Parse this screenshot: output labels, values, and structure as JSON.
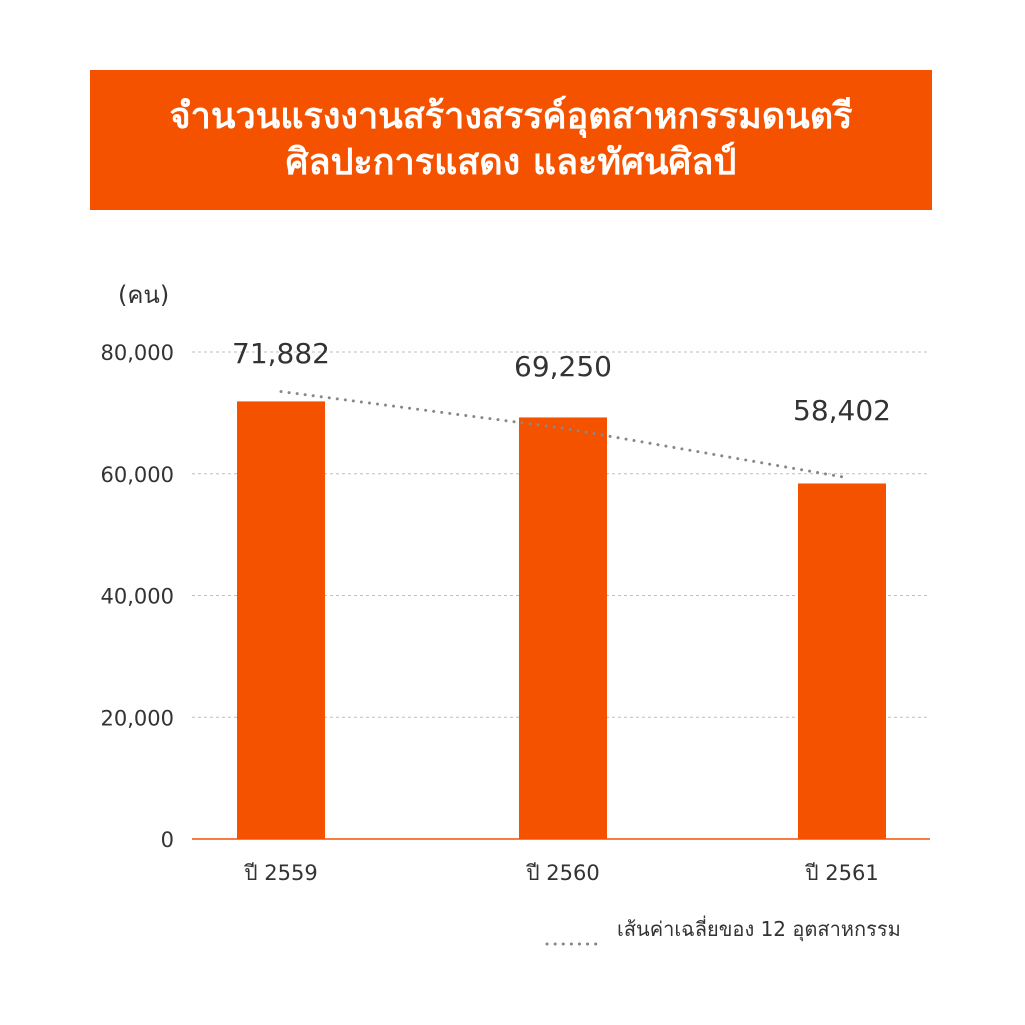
{
  "colors": {
    "banner": "#f55200",
    "bar": "#f55200",
    "axis_line": "#f55200",
    "gridline": "#bfbfbf",
    "trend_line": "#888888",
    "text": "#333333"
  },
  "title": {
    "line1": "จำนวนแรงงานสร้างสรรค์อุตสาหกรรมดนตรี",
    "line2": "ศิลปะการแสดง และทัศนศิลป์"
  },
  "chart_data": {
    "type": "bar",
    "unit_label": "(คน)",
    "categories": [
      "ปี 2559",
      "ปี 2560",
      "ปี 2561"
    ],
    "values": [
      71882,
      69250,
      58402
    ],
    "data_labels": [
      "71,882",
      "69,250",
      "58,402"
    ],
    "ylim": [
      0,
      80000
    ],
    "yticks": [
      0,
      20000,
      40000,
      60000,
      80000
    ],
    "ytick_labels": [
      "0",
      "20,000",
      "40,000",
      "60,000",
      "80,000"
    ],
    "grid": true,
    "trend_line": {
      "name": "เส้นค่าเฉลี่ยของ 12 อุตสาหกรรม",
      "values": [
        73500,
        67500,
        59500
      ]
    },
    "legend_position": "bottom-right"
  }
}
